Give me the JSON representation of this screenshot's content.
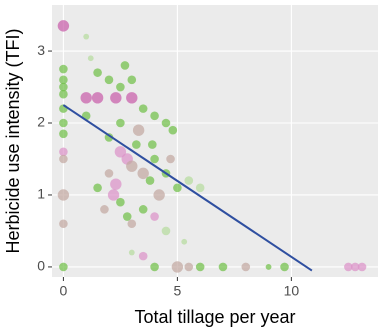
{
  "chart_data": {
    "type": "scatter",
    "xlabel": "Total tillage per year",
    "ylabel": "Herbicide use intensity (TFI)",
    "xlim": [
      -0.5,
      13.8
    ],
    "ylim": [
      -0.14,
      3.64
    ],
    "xticks": [
      0,
      5,
      10
    ],
    "yticks": [
      0,
      1,
      2,
      3
    ],
    "grid": true,
    "series": [
      {
        "x": [
          0,
          0,
          0,
          0,
          0,
          0,
          0,
          0,
          0,
          0,
          0,
          0,
          0,
          1,
          1.5,
          2.3,
          3,
          1,
          1.2,
          1.5,
          2,
          2.5,
          2.7,
          3,
          3.5,
          4,
          4.5,
          4.8,
          2,
          2.5,
          2.8,
          3,
          3.2,
          3.5,
          3.8,
          4,
          4.2,
          4.5,
          5,
          5.5,
          6,
          2,
          2.2,
          2.5,
          2.8,
          3,
          3.5,
          4,
          4.5,
          1.5,
          1.8,
          2.3,
          3,
          3.5,
          4,
          5,
          5.5,
          6,
          7,
          8,
          9,
          9.7,
          12.5,
          12.8,
          13.1,
          5.3,
          1,
          2.5,
          3.3,
          3.9,
          4.7
        ],
        "values": [
          3.35,
          2.75,
          2.6,
          2.5,
          2.4,
          2.2,
          2,
          1.85,
          1.6,
          1.5,
          1,
          0.6,
          0,
          2.35,
          2.35,
          2.35,
          2.35,
          3.2,
          2.9,
          2.7,
          2.6,
          2.5,
          2.8,
          2.6,
          2.2,
          2.1,
          2,
          1.9,
          1.8,
          1.6,
          1.5,
          1.4,
          1.7,
          1.3,
          1.2,
          1.5,
          1,
          1.3,
          1.1,
          1.2,
          1.1,
          1.3,
          1,
          0.9,
          0.7,
          0.6,
          0.8,
          0.7,
          0.5,
          1.1,
          0.8,
          1.15,
          0.2,
          0.15,
          0,
          0,
          0,
          0,
          0,
          0,
          0,
          0,
          0,
          0,
          0,
          0.35,
          2.1,
          2,
          1.9,
          1.7,
          1.5
        ],
        "sizes": [
          3,
          2,
          2,
          2,
          2,
          2,
          2,
          2,
          2,
          2,
          3,
          2,
          2,
          3,
          3,
          3,
          3,
          1,
          1,
          2,
          2,
          2,
          2,
          2,
          2,
          2,
          2,
          2,
          2,
          3,
          3,
          3,
          2,
          3,
          2,
          2,
          3,
          2,
          2,
          2,
          2,
          2,
          3,
          2,
          2,
          2,
          2,
          2,
          2,
          2,
          2,
          3,
          1,
          2,
          2,
          3,
          2,
          2,
          2,
          2,
          1,
          2,
          2,
          2,
          2,
          1,
          2,
          2,
          3,
          2,
          2
        ],
        "colors": [
          "#c75aa8",
          "#6dbf45",
          "#6dbf45",
          "#6dbf45",
          "#6dbf45",
          "#6dbf45",
          "#6dbf45",
          "#6dbf45",
          "#dc90c8",
          "#c2a6a0",
          "#c2a6a0",
          "#c2a6a0",
          "#6dbf45",
          "#c75aa8",
          "#c75aa8",
          "#c75aa8",
          "#c75aa8",
          "#b5dc9c",
          "#b5dc9c",
          "#6dbf45",
          "#6dbf45",
          "#6dbf45",
          "#6dbf45",
          "#6dbf45",
          "#6dbf45",
          "#6dbf45",
          "#6dbf45",
          "#6dbf45",
          "#6dbf45",
          "#dc90c8",
          "#dc90c8",
          "#c2a6a0",
          "#6dbf45",
          "#c2a6a0",
          "#6dbf45",
          "#6dbf45",
          "#c2a6a0",
          "#6dbf45",
          "#6dbf45",
          "#b5dc9c",
          "#b5dc9c",
          "#c2a6a0",
          "#dc90c8",
          "#6dbf45",
          "#6dbf45",
          "#c2a6a0",
          "#6dbf45",
          "#dc90c8",
          "#b5dc9c",
          "#6dbf45",
          "#c2a6a0",
          "#dc90c8",
          "#b5dc9c",
          "#dc90c8",
          "#6dbf45",
          "#c2a6a0",
          "#c2a6a0",
          "#6dbf45",
          "#6dbf45",
          "#c2a6a0",
          "#6dbf45",
          "#6dbf45",
          "#dc90c8",
          "#dc90c8",
          "#dc90c8",
          "#b5dc9c",
          "#6dbf45",
          "#6dbf45",
          "#c2a6a0",
          "#6dbf45",
          "#c2a6a0"
        ]
      }
    ],
    "fit": {
      "x": [
        0,
        10.9
      ],
      "values": [
        2.25,
        -0.05
      ],
      "color": "#2f4fa0"
    }
  }
}
